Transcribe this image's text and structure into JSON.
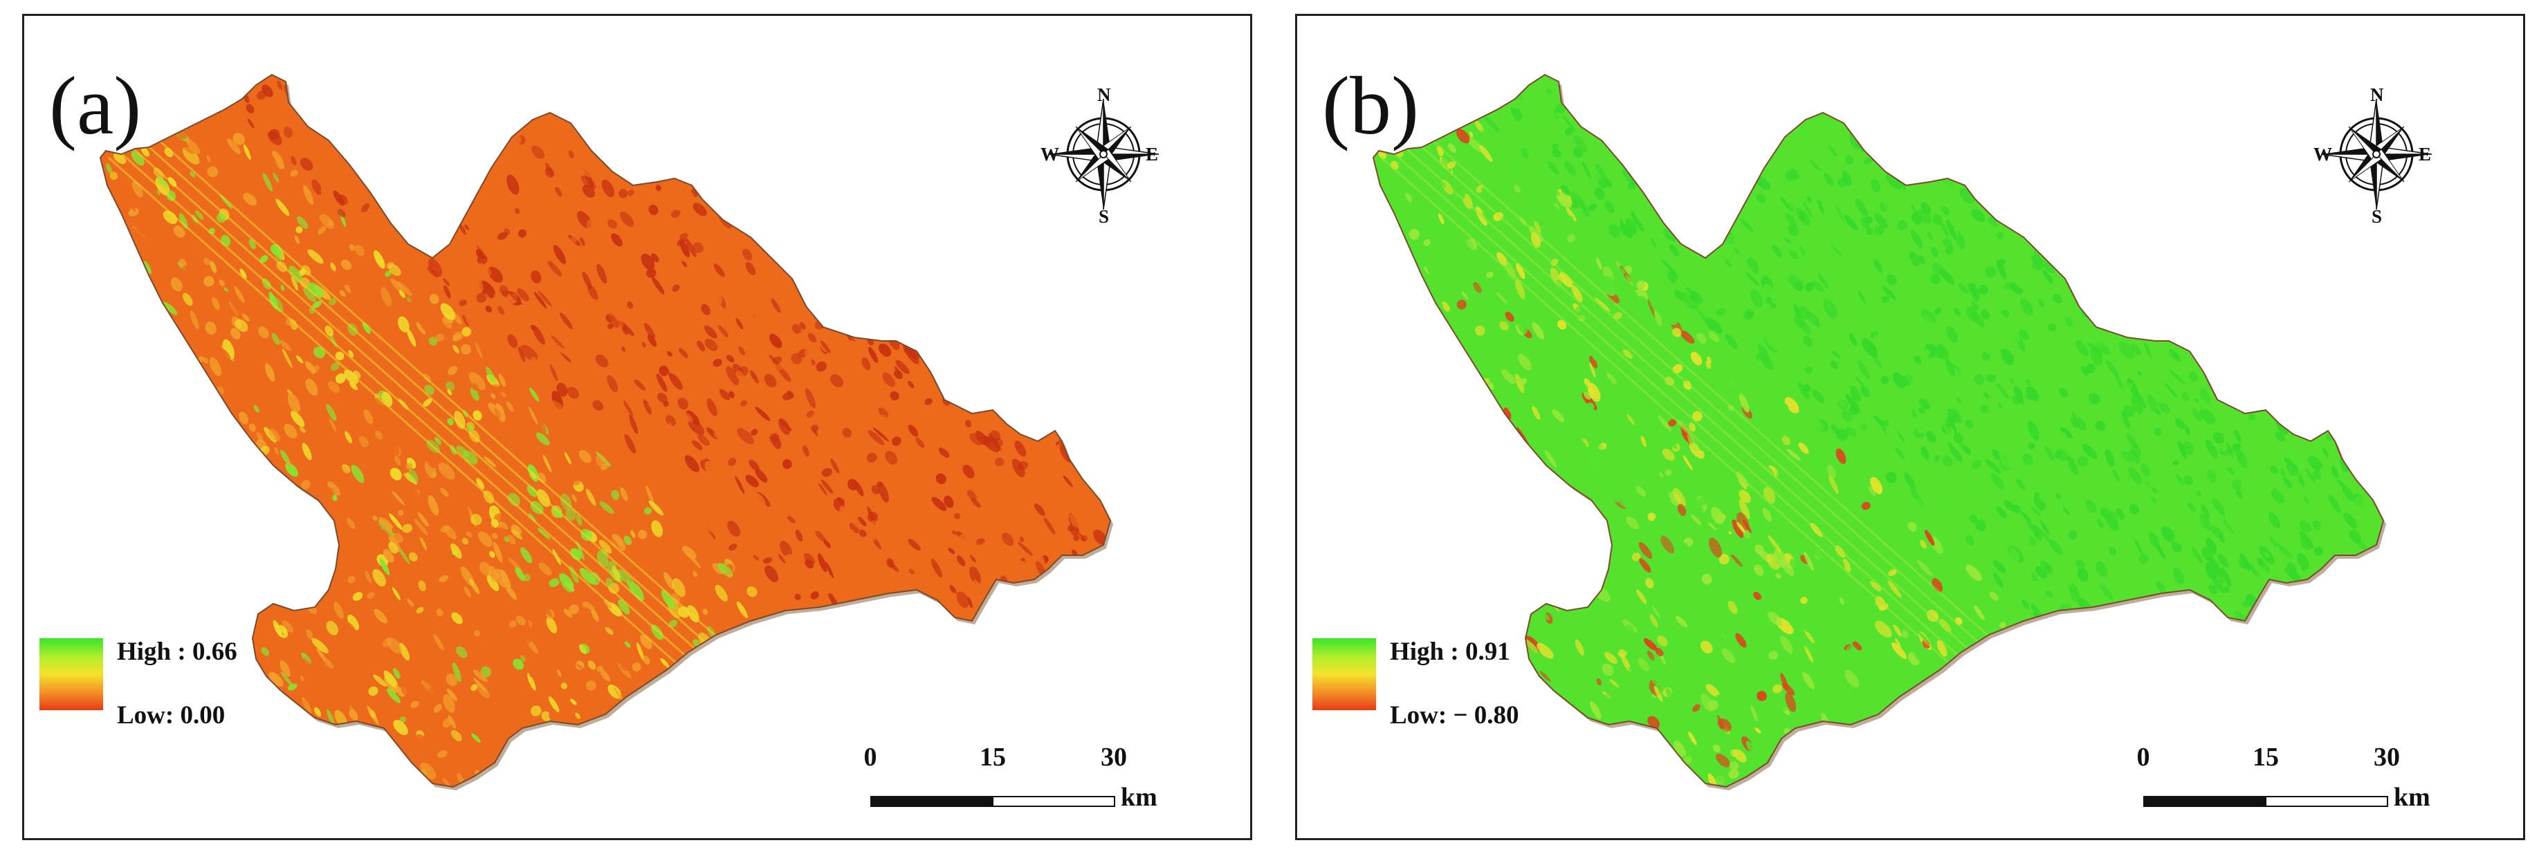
{
  "panels": [
    {
      "id": "a",
      "label": "(a)",
      "legend": {
        "high": "High : 0.66",
        "low": "Low: 0.00"
      },
      "scale": {
        "ticks": [
          "0",
          "15",
          "30"
        ],
        "unit": "km"
      },
      "compass": {
        "n": "N",
        "s": "S",
        "e": "E",
        "w": "W"
      },
      "palette": {
        "base": "#ec6a1c",
        "light": "#f3a02a",
        "mid": "#f0dc2a",
        "high": "#86e632",
        "dark": "#c83210"
      },
      "pattern": "mostly low values (orange/red), green speckles along ridges"
    },
    {
      "id": "b",
      "label": "(b)",
      "legend": {
        "high": "High : 0.91",
        "low": "Low: − 0.80"
      },
      "scale": {
        "ticks": [
          "0",
          "15",
          "30"
        ],
        "unit": "km"
      },
      "compass": {
        "n": "N",
        "s": "S",
        "e": "E",
        "w": "W"
      },
      "palette": {
        "base": "#54e22e",
        "light": "#9ee838",
        "mid": "#e6e22c",
        "high": "#36d82a",
        "dark": "#e0401a"
      },
      "pattern": "mostly high values (green), yellow/red patches in east"
    }
  ]
}
